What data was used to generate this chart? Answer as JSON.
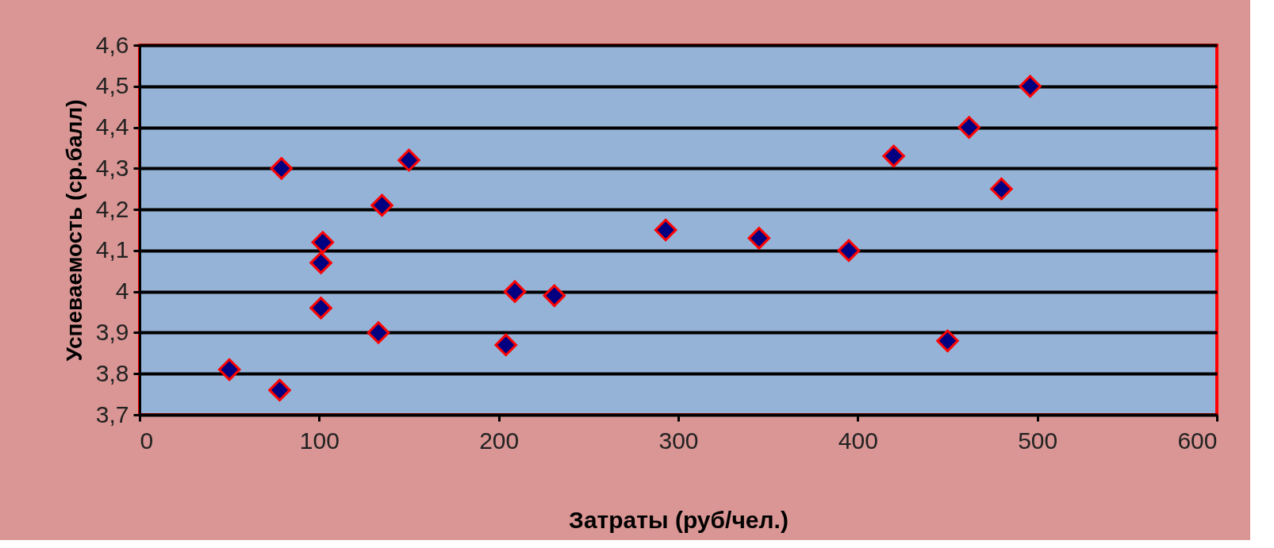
{
  "chart_data": {
    "type": "scatter",
    "xlabel": "Затраты (руб/чел.)",
    "ylabel": "Успеваемость (ср.балл)",
    "series": [
      {
        "color": "#000080",
        "x": [
          50,
          78,
          79,
          102,
          101,
          101,
          135,
          133,
          150,
          204,
          209,
          231,
          293,
          345,
          395,
          420,
          450,
          462,
          480,
          496
        ],
        "values": [
          3.81,
          3.76,
          4.3,
          4.12,
          4.07,
          3.96,
          4.21,
          3.9,
          4.32,
          3.87,
          4.0,
          3.99,
          4.15,
          4.13,
          4.1,
          4.33,
          3.88,
          4.4,
          4.25,
          4.5
        ]
      }
    ],
    "xlim": [
      0,
      600
    ],
    "xticks": [
      0,
      100,
      200,
      300,
      400,
      500,
      600
    ],
    "ylim": [
      3.7,
      4.6
    ],
    "yticks": [
      {
        "value": 3.7,
        "label": "3,7"
      },
      {
        "value": 3.8,
        "label": "3,8"
      },
      {
        "value": 3.9,
        "label": "3,9"
      },
      4,
      {
        "value": 4.1,
        "label": "4,1"
      },
      {
        "value": 4.2,
        "label": "4,2"
      },
      {
        "value": 4.3,
        "label": "4,3"
      },
      {
        "value": 4.4,
        "label": "4,4"
      },
      {
        "value": 4.5,
        "label": "4,5"
      },
      {
        "value": 4.6,
        "label": "4,6"
      }
    ],
    "grid": "y",
    "marker": "diamond"
  }
}
